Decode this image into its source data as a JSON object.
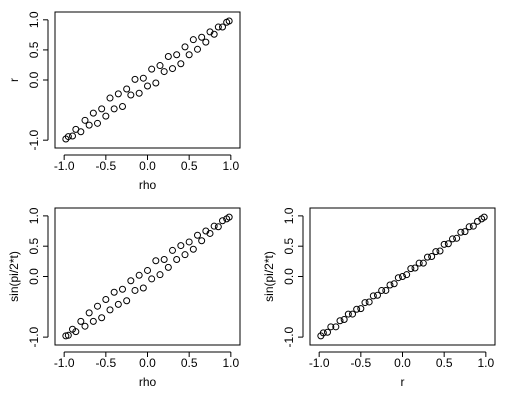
{
  "chart_data": [
    {
      "type": "scatter",
      "xlabel": "rho",
      "ylabel": "r",
      "x": [
        -0.98,
        -0.95,
        -0.9,
        -0.86,
        -0.8,
        -0.75,
        -0.7,
        -0.65,
        -0.6,
        -0.55,
        -0.5,
        -0.45,
        -0.4,
        -0.35,
        -0.3,
        -0.25,
        -0.2,
        -0.15,
        -0.1,
        -0.05,
        0,
        0.05,
        0.1,
        0.15,
        0.2,
        0.25,
        0.3,
        0.35,
        0.4,
        0.45,
        0.5,
        0.55,
        0.6,
        0.65,
        0.7,
        0.75,
        0.8,
        0.85,
        0.9,
        0.95,
        0.98
      ],
      "y": [
        -0.98,
        -0.94,
        -0.93,
        -0.82,
        -0.86,
        -0.67,
        -0.75,
        -0.55,
        -0.72,
        -0.48,
        -0.6,
        -0.3,
        -0.48,
        -0.23,
        -0.44,
        -0.15,
        -0.25,
        0.01,
        -0.22,
        0.03,
        -0.1,
        0.18,
        -0.05,
        0.24,
        0.14,
        0.39,
        0.19,
        0.42,
        0.27,
        0.55,
        0.42,
        0.67,
        0.51,
        0.71,
        0.63,
        0.8,
        0.76,
        0.88,
        0.88,
        0.96,
        0.98
      ],
      "color": "#000000",
      "xlim": [
        -1.11,
        1.11
      ],
      "ylim": [
        -1.13,
        1.13
      ],
      "xticks": [
        {
          "value": -1,
          "label": "-1.0"
        },
        {
          "value": -0.5,
          "label": "-0.5"
        },
        {
          "value": 0,
          "label": "0.0"
        },
        {
          "value": 0.5,
          "label": "0.5"
        },
        {
          "value": 1,
          "label": "1.0"
        }
      ],
      "yticks": [
        {
          "value": -1,
          "label": "-1.0"
        },
        {
          "value": 0,
          "label": "0.0"
        },
        {
          "value": 0.5,
          "label": "0.5"
        },
        {
          "value": 1,
          "label": "1.0"
        }
      ]
    },
    {
      "type": "scatter",
      "xlabel": "rho",
      "ylabel": "sin(pi/2*t)",
      "x": [
        -0.98,
        -0.95,
        -0.9,
        -0.86,
        -0.8,
        -0.75,
        -0.7,
        -0.65,
        -0.6,
        -0.55,
        -0.5,
        -0.45,
        -0.4,
        -0.35,
        -0.3,
        -0.25,
        -0.2,
        -0.15,
        -0.1,
        -0.05,
        0,
        0.05,
        0.1,
        0.15,
        0.2,
        0.25,
        0.3,
        0.35,
        0.4,
        0.45,
        0.5,
        0.55,
        0.6,
        0.65,
        0.7,
        0.75,
        0.8,
        0.85,
        0.9,
        0.95,
        0.98
      ],
      "y": [
        -0.98,
        -0.97,
        -0.87,
        -0.91,
        -0.74,
        -0.82,
        -0.6,
        -0.74,
        -0.49,
        -0.68,
        -0.38,
        -0.55,
        -0.26,
        -0.46,
        -0.21,
        -0.4,
        -0.07,
        -0.23,
        0.02,
        -0.19,
        0.1,
        -0.04,
        0.26,
        0.03,
        0.28,
        0.15,
        0.43,
        0.28,
        0.51,
        0.36,
        0.57,
        0.45,
        0.68,
        0.59,
        0.75,
        0.71,
        0.83,
        0.82,
        0.92,
        0.95,
        0.98
      ],
      "color": "#000000",
      "xlim": [
        -1.11,
        1.11
      ],
      "ylim": [
        -1.13,
        1.13
      ],
      "xticks": [
        {
          "value": -1,
          "label": "-1.0"
        },
        {
          "value": -0.5,
          "label": "-0.5"
        },
        {
          "value": 0,
          "label": "0.0"
        },
        {
          "value": 0.5,
          "label": "0.5"
        },
        {
          "value": 1,
          "label": "1.0"
        }
      ],
      "yticks": [
        {
          "value": -1,
          "label": "-1.0"
        },
        {
          "value": 0,
          "label": "0.0"
        },
        {
          "value": 0.5,
          "label": "0.5"
        },
        {
          "value": 1,
          "label": "1.0"
        }
      ]
    },
    {
      "type": "scatter",
      "xlabel": "r",
      "ylabel": "sin(pi/2*t)",
      "x": [
        -0.98,
        -0.95,
        -0.9,
        -0.86,
        -0.8,
        -0.75,
        -0.7,
        -0.65,
        -0.6,
        -0.55,
        -0.5,
        -0.45,
        -0.4,
        -0.35,
        -0.3,
        -0.25,
        -0.2,
        -0.15,
        -0.1,
        -0.05,
        0,
        0.05,
        0.1,
        0.15,
        0.2,
        0.25,
        0.3,
        0.35,
        0.4,
        0.45,
        0.5,
        0.55,
        0.6,
        0.65,
        0.7,
        0.75,
        0.8,
        0.85,
        0.9,
        0.95,
        0.98
      ],
      "y": [
        -0.98,
        -0.93,
        -0.92,
        -0.83,
        -0.83,
        -0.73,
        -0.71,
        -0.62,
        -0.62,
        -0.54,
        -0.53,
        -0.43,
        -0.42,
        -0.32,
        -0.31,
        -0.23,
        -0.23,
        -0.14,
        -0.12,
        -0.02,
        0,
        0.03,
        0.13,
        0.14,
        0.22,
        0.22,
        0.32,
        0.33,
        0.41,
        0.42,
        0.53,
        0.54,
        0.62,
        0.63,
        0.73,
        0.74,
        0.82,
        0.83,
        0.91,
        0.95,
        0.98
      ],
      "color": "#000000",
      "xlim": [
        -1.11,
        1.11
      ],
      "ylim": [
        -1.13,
        1.13
      ],
      "xticks": [
        {
          "value": -1,
          "label": "-1.0"
        },
        {
          "value": -0.5,
          "label": "-0.5"
        },
        {
          "value": 0,
          "label": "0.0"
        },
        {
          "value": 0.5,
          "label": "0.5"
        },
        {
          "value": 1,
          "label": "1.0"
        }
      ],
      "yticks": [
        {
          "value": -1,
          "label": "-1.0"
        },
        {
          "value": 0,
          "label": "0.0"
        },
        {
          "value": 0.5,
          "label": "0.5"
        },
        {
          "value": 1,
          "label": "1.0"
        }
      ]
    }
  ]
}
